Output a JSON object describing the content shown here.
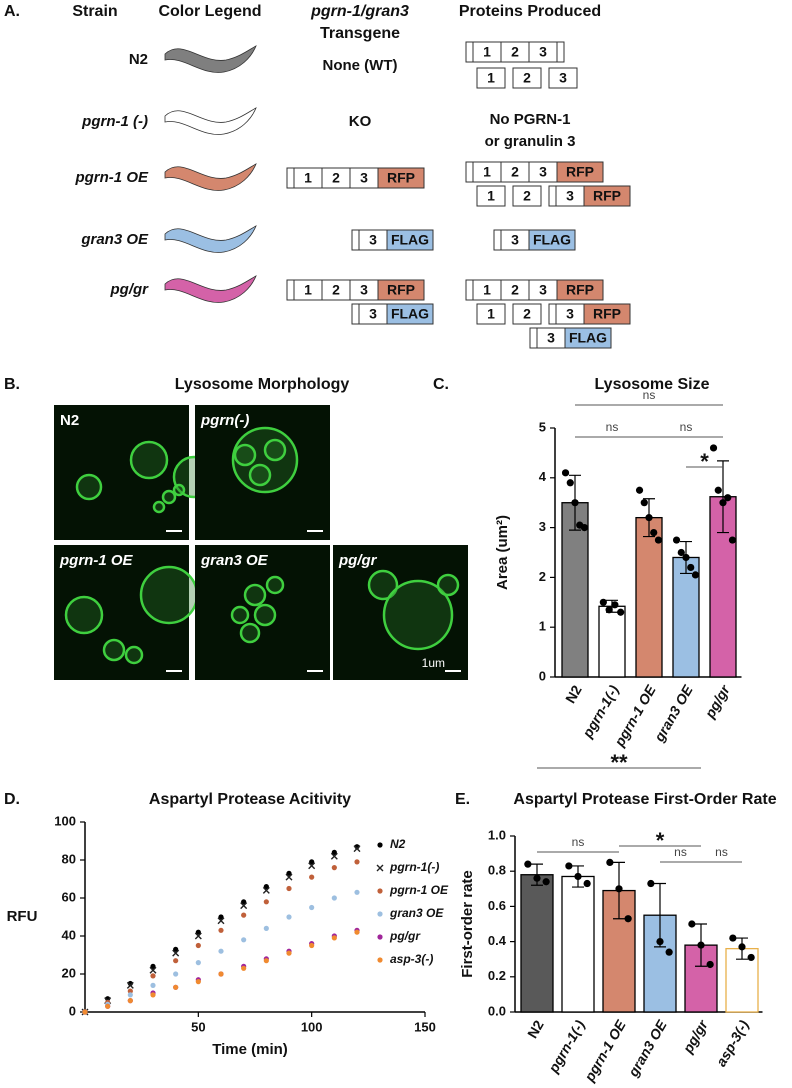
{
  "panel_a": {
    "label": "A.",
    "headers": [
      "Strain",
      "Color Legend",
      "pgrn-1/gran3",
      "Transgene",
      "Proteins Produced"
    ],
    "rows": [
      {
        "strain": "N2",
        "color": "#7f7f7f",
        "transgene": "None (WT)",
        "proteins": [
          [
            "1",
            "2",
            "3"
          ],
          [
            "1",
            "2",
            "3"
          ]
        ]
      },
      {
        "strain": "pgrn-1 (-)",
        "color": "#ffffff",
        "transgene": "KO",
        "proteins_text": [
          "No PGRN-1",
          "or granulin 3"
        ]
      },
      {
        "strain": "pgrn-1 OE",
        "color": "#d4876e",
        "transgene_constructs": [
          [
            "1",
            "2",
            "3",
            "RFP"
          ]
        ],
        "proteins": [
          [
            "1",
            "2",
            "3",
            "RFP"
          ],
          [
            "1",
            "2",
            "3",
            "RFP"
          ]
        ]
      },
      {
        "strain": "gran3 OE",
        "color": "#9bbfe3",
        "transgene_constructs": [
          [
            "3",
            "FLAG"
          ]
        ],
        "proteins": [
          [
            "3",
            "FLAG"
          ]
        ]
      },
      {
        "strain": "pg/gr",
        "color": "#d462a8",
        "transgene_constructs": [
          [
            "1",
            "2",
            "3",
            "RFP"
          ],
          [
            "3",
            "FLAG"
          ]
        ],
        "proteins": [
          [
            "1",
            "2",
            "3",
            "RFP"
          ],
          [
            "1",
            "2",
            "3",
            "RFP"
          ],
          [
            "3",
            "FLAG"
          ]
        ]
      }
    ]
  },
  "panel_b": {
    "label": "B.",
    "title": "Lysosome Morphology",
    "images": [
      "N2",
      "pgrn(-)",
      "pgrn-1 OE",
      "gran3 OE",
      "pg/gr"
    ],
    "scale_label": "1um"
  },
  "chart_data": [
    {
      "type": "bar",
      "panel_label": "C.",
      "title": "Lysosome Size",
      "y_label": "Area (um²)",
      "categories": [
        "N2",
        "pgrn-1(-)",
        "pgrn-1 OE",
        "gran3 OE",
        "pg/gr"
      ],
      "values": [
        3.5,
        1.42,
        3.2,
        2.4,
        3.62
      ],
      "errors": [
        0.55,
        0.12,
        0.38,
        0.32,
        0.72
      ],
      "points": [
        [
          4.1,
          3.9,
          3.5,
          3.05,
          3.0
        ],
        [
          1.5,
          1.35,
          1.45,
          1.3
        ],
        [
          3.75,
          3.5,
          3.2,
          2.9,
          2.75
        ],
        [
          2.75,
          2.5,
          2.4,
          2.2,
          2.05
        ],
        [
          4.6,
          3.75,
          3.5,
          3.6,
          2.75
        ]
      ],
      "colors": [
        "#808080",
        "#ffffff",
        "#d4876e",
        "#9bbfe3",
        "#d462a8"
      ],
      "ylim": [
        0,
        5
      ],
      "yticks": [
        0,
        1,
        2,
        3,
        4,
        5
      ],
      "annotations": [
        "ns",
        "ns",
        "ns",
        "*"
      ]
    },
    {
      "type": "scatter",
      "panel_label": "D.",
      "title": "Aspartyl Protease Acitivity",
      "x_label": "Time (min)",
      "y_label": "RFU",
      "x": [
        0,
        10,
        20,
        30,
        40,
        50,
        60,
        70,
        80,
        90,
        100,
        110,
        120
      ],
      "series": [
        {
          "name": "N2",
          "color": "#000000",
          "marker": "circle",
          "values": [
            0,
            7,
            15,
            24,
            33,
            42,
            50,
            58,
            66,
            73,
            79,
            84,
            87
          ]
        },
        {
          "name": "pgrn-1(-)",
          "color": "#222222",
          "marker": "cross",
          "values": [
            0,
            6,
            14,
            22,
            31,
            40,
            48,
            56,
            64,
            71,
            77,
            82,
            86
          ]
        },
        {
          "name": "pgrn-1 OE",
          "color": "#c0603a",
          "marker": "circle",
          "values": [
            0,
            5,
            11,
            19,
            27,
            35,
            43,
            51,
            58,
            65,
            71,
            76,
            79
          ]
        },
        {
          "name": "gran3 OE",
          "color": "#9dbfe0",
          "marker": "circle",
          "values": [
            0,
            4,
            9,
            14,
            20,
            26,
            32,
            38,
            44,
            50,
            55,
            60,
            63
          ]
        },
        {
          "name": "pg/gr",
          "color": "#a0259a",
          "marker": "circle",
          "values": [
            0,
            3,
            6,
            10,
            13,
            17,
            20,
            24,
            28,
            32,
            36,
            40,
            43
          ]
        },
        {
          "name": "asp-3(-)",
          "color": "#f08a30",
          "marker": "circle",
          "values": [
            0,
            3,
            6,
            9,
            13,
            16,
            20,
            23,
            27,
            31,
            35,
            39,
            42
          ]
        }
      ],
      "xlim": [
        0,
        150
      ],
      "xticks": [
        50,
        100,
        150
      ],
      "ylim": [
        0,
        100
      ],
      "yticks": [
        0,
        20,
        40,
        60,
        80,
        100
      ]
    },
    {
      "type": "bar",
      "panel_label": "E.",
      "title": "Aspartyl Protease First-Order Rate",
      "y_label": "First-order rate",
      "categories": [
        "N2",
        "pgrn-1(-)",
        "pgrn-1 OE",
        "gran3 OE",
        "pg/gr",
        "asp-3(-)"
      ],
      "values": [
        0.78,
        0.77,
        0.69,
        0.55,
        0.38,
        0.36
      ],
      "errors": [
        0.06,
        0.06,
        0.16,
        0.18,
        0.12,
        0.06
      ],
      "points": [
        [
          0.84,
          0.76,
          0.74
        ],
        [
          0.83,
          0.77,
          0.73
        ],
        [
          0.85,
          0.7,
          0.53
        ],
        [
          0.73,
          0.4,
          0.34
        ],
        [
          0.5,
          0.38,
          0.27
        ],
        [
          0.42,
          0.37,
          0.31
        ]
      ],
      "colors": [
        "#595959",
        "#ffffff",
        "#d4876e",
        "#9bbfe3",
        "#d462a8",
        "#ffffff"
      ],
      "edgecolors": [
        "#000000",
        "#000000",
        "#000000",
        "#000000",
        "#000000",
        "#e8b04a"
      ],
      "ylim": [
        0,
        1
      ],
      "yticks": [
        {
          "value": 0,
          "label": "0.0"
        },
        {
          "value": 0.2,
          "label": "0.2"
        },
        {
          "value": 0.4,
          "label": "0.4"
        },
        {
          "value": 0.6,
          "label": "0.6"
        },
        {
          "value": 0.8,
          "label": "0.8"
        },
        {
          "value": 1,
          "label": "1.0"
        }
      ],
      "annotations": [
        "**",
        "ns",
        "*",
        "ns",
        "ns"
      ]
    }
  ]
}
